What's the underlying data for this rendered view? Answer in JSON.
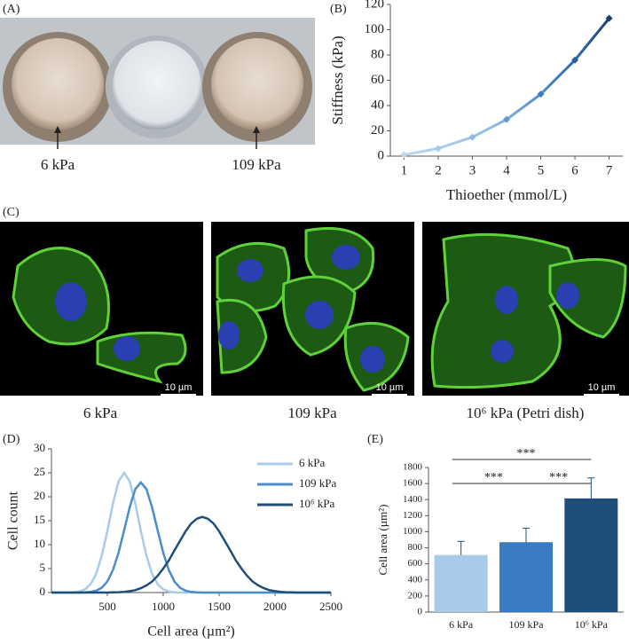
{
  "figure": {
    "panel_labels": [
      "(A)",
      "(B)",
      "(C)",
      "(D)",
      "(E)"
    ],
    "photo_labels": [
      "6 kPa",
      "109 kPa"
    ],
    "micrograph_captions": [
      "6 kPa",
      "109 kPa",
      "10⁶ kPa (Petri dish)"
    ],
    "scale_bar": "10 µm"
  },
  "chart_data": [
    {
      "type": "line",
      "x_label": "Thioether (mmol/L)",
      "y_label": "Stiffness (kPa)",
      "x": [
        1,
        2,
        3,
        4,
        5,
        6,
        7
      ],
      "series": [
        {
          "colors": [
            "#bcd7ee",
            "#a6c9ea",
            "#8db9e2",
            "#5f97cf",
            "#3f7cbc",
            "#2a5f9b",
            "#1b3f70"
          ],
          "values": [
            1,
            6,
            15,
            29,
            49,
            76,
            109
          ]
        }
      ],
      "xlim": [
        0.6,
        7.4
      ],
      "xticks": [
        1,
        2,
        3,
        4,
        5,
        6,
        7
      ],
      "ylim": [
        0,
        120
      ],
      "yticks": [
        0,
        20,
        40,
        60,
        80,
        100,
        120
      ]
    },
    {
      "type": "curve",
      "x_label": "Cell area (µm²)",
      "y_label": "Cell count",
      "x": [
        0,
        50,
        100,
        150,
        200,
        250,
        300,
        350,
        400,
        450,
        500,
        550,
        600,
        650,
        700,
        750,
        800,
        850,
        900,
        950,
        1000,
        1050,
        1100,
        1150,
        1200,
        1250,
        1300,
        1350,
        1400,
        1450,
        1500,
        1550,
        1600,
        1650,
        1700,
        1750,
        1800,
        1850,
        1900,
        1950,
        2000,
        2050,
        2100,
        2150,
        2200,
        2250,
        2300,
        2350,
        2400,
        2450,
        2500
      ],
      "series": [
        {
          "name": "6 kPa",
          "color": "#a9cbe9",
          "values": [
            0,
            0,
            0,
            0,
            0.06,
            0.22,
            0.67,
            1.75,
            3.9,
            7.7,
            12.8,
            18.6,
            23.2,
            25,
            23.2,
            18.6,
            12.8,
            7.7,
            3.9,
            1.75,
            0.67,
            0.22,
            0.06,
            0,
            0,
            0,
            0,
            0,
            0,
            0,
            0,
            0,
            0,
            0,
            0,
            0,
            0,
            0,
            0,
            0,
            0,
            0,
            0,
            0,
            0,
            0,
            0,
            0,
            0,
            0,
            0
          ]
        },
        {
          "name": "109 kPa",
          "color": "#4a8ccc",
          "values": [
            0,
            0,
            0,
            0,
            0,
            0,
            0.04,
            0.13,
            0.39,
            1.0,
            2.3,
            4.7,
            8.3,
            13.0,
            17.8,
            21.6,
            23,
            21.6,
            17.8,
            13.0,
            8.3,
            4.7,
            2.3,
            1.0,
            0.39,
            0.13,
            0.04,
            0,
            0,
            0,
            0,
            0,
            0,
            0,
            0,
            0,
            0,
            0,
            0,
            0,
            0,
            0,
            0,
            0,
            0,
            0,
            0,
            0,
            0,
            0,
            0
          ]
        },
        {
          "name": "10⁶ kPa",
          "color": "#1f4e79",
          "values": [
            0,
            0,
            0,
            0,
            0,
            0,
            0,
            0,
            0,
            0,
            0,
            0.04,
            0.08,
            0.15,
            0.29,
            0.5,
            0.9,
            1.5,
            2.3,
            3.5,
            5.0,
            6.7,
            8.8,
            10.8,
            12.8,
            14.4,
            15.4,
            15.8,
            15.4,
            14.4,
            12.8,
            10.8,
            8.8,
            6.7,
            5.0,
            3.5,
            2.3,
            1.5,
            0.9,
            0.5,
            0.29,
            0.15,
            0.08,
            0.04,
            0,
            0,
            0,
            0,
            0,
            0,
            0
          ]
        }
      ],
      "xlim": [
        0,
        2500
      ],
      "xticks": [
        500,
        1000,
        1500,
        2000,
        2500
      ],
      "ylim": [
        0,
        30
      ],
      "yticks": [
        0,
        5,
        10,
        15,
        20,
        25,
        30
      ]
    },
    {
      "type": "bar",
      "y_label": "Cell area (µm²)",
      "categories": [
        "6 kPa",
        "109 kPa",
        "10⁶ kPa"
      ],
      "values": [
        710,
        870,
        1415
      ],
      "errors": [
        170,
        175,
        255
      ],
      "colors": [
        "#a9cbe9",
        "#3a7cc1",
        "#1f4e79"
      ],
      "significance": [
        "***",
        "***",
        "***"
      ],
      "ylim": [
        0,
        1800
      ],
      "yticks": [
        0,
        200,
        400,
        600,
        800,
        1000,
        1200,
        1400,
        1600,
        1800
      ]
    }
  ]
}
